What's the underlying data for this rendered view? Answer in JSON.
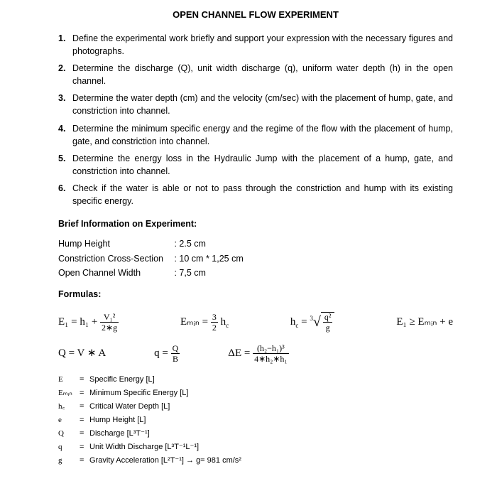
{
  "title": "OPEN CHANNEL FLOW EXPERIMENT",
  "tasks": [
    "Define the experimental work briefly and support your expression with the necessary figures and photographs.",
    "Determine the discharge (Q), unit width discharge (q), uniform water depth (h) in the open channel.",
    "Determine the water depth (cm) and the velocity (cm/sec) with the placement of hump, gate, and constriction into channel.",
    "Determine the minimum specific energy and the regime of the flow with the placement of hump, gate, and constriction into channel.",
    "Determine the energy loss in the Hydraulic Jump with the placement of a hump, gate, and constriction into channel.",
    "Check if the water is able or not to pass through the constriction and hump with its existing specific energy."
  ],
  "brief_label": "Brief Information on Experiment:",
  "params": [
    {
      "label": "Hump Height",
      "value": ": 2.5 cm"
    },
    {
      "label": "Constriction Cross-Section",
      "value": ": 10 cm * 1,25 cm"
    },
    {
      "label": "Open Channel Width",
      "value": ": 7,5 cm"
    }
  ],
  "formulas_label": "Formulas:",
  "f_row1": {
    "e1_lhs": "E₁ = h₁ + ",
    "e1_frac_num": "V₁²",
    "e1_frac_den": "2∗g",
    "emin_lhs": "Eₘᵢₙ = ",
    "emin_frac_num": "3",
    "emin_frac_den": "2",
    "emin_rhs": " h",
    "hc_lhs": "h",
    "hc_eq": " = ",
    "hc_root_exp": "3",
    "hc_frac_num": "q²",
    "hc_frac_den": "g",
    "e1_cond": "E₁ ≥ Eₘᵢₙ + e"
  },
  "f_row2": {
    "qva": "Q = V ∗ A",
    "q_lhs": "q = ",
    "q_frac_num": "Q",
    "q_frac_den": "B",
    "de_lhs": "ΔE = ",
    "de_frac_num": "(h₂−h₁)³",
    "de_frac_den": "4∗h₂∗h₁"
  },
  "defs": [
    {
      "sym": "E",
      "txt": "Specific Energy [L]"
    },
    {
      "sym": "Eₘᵢₙ",
      "txt": "Minimum Specific Energy [L]"
    },
    {
      "sym": "h꜀",
      "txt": "Critical Water Depth [L]"
    },
    {
      "sym": "e",
      "txt": "Hump Height [L]"
    },
    {
      "sym": "Q",
      "txt": "Discharge [L³T⁻¹]"
    },
    {
      "sym": "q",
      "txt": "Unit Width Discharge [L³T⁻¹L⁻¹]"
    },
    {
      "sym": "g",
      "txt": "Gravity Acceleration [L²T⁻¹] → g= 981 cm/s²"
    }
  ]
}
